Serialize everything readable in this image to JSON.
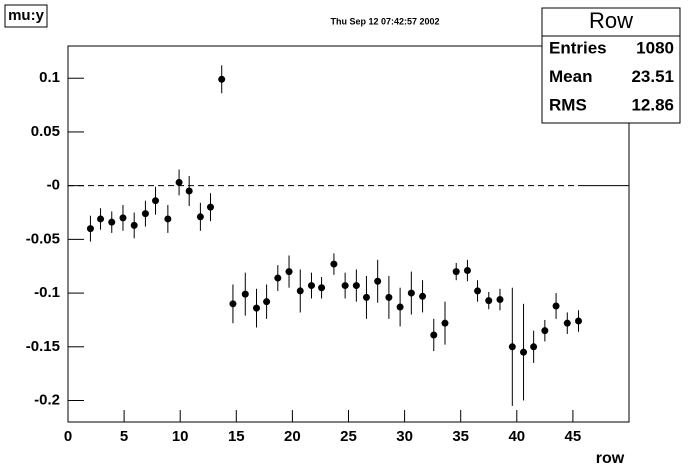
{
  "chart_data": {
    "type": "scatter",
    "title": "mu:y",
    "subtitle": "Thu Sep 12 07:42:57 2002",
    "xlabel": "row",
    "stats": {
      "title": "Row",
      "rows": [
        {
          "label": "Entries",
          "value": 1080
        },
        {
          "label": "Mean",
          "value": 23.51
        },
        {
          "label": "RMS",
          "value": 12.86
        }
      ]
    },
    "x": [
      2.0,
      2.9,
      3.9,
      4.9,
      5.9,
      6.9,
      7.8,
      8.9,
      9.9,
      10.8,
      11.8,
      12.7,
      13.7,
      14.7,
      15.8,
      16.8,
      17.7,
      18.7,
      19.7,
      20.7,
      21.7,
      22.6,
      23.7,
      24.7,
      25.7,
      26.6,
      27.6,
      28.6,
      29.6,
      30.6,
      31.6,
      32.6,
      33.6,
      34.6,
      35.6,
      36.5,
      37.5,
      38.5,
      39.6,
      40.6,
      41.5,
      42.5,
      43.5,
      44.5,
      45.5
    ],
    "series": [
      {
        "color": "#000000",
        "values": [
          -0.04,
          -0.031,
          -0.034,
          -0.03,
          -0.037,
          -0.026,
          -0.014,
          -0.031,
          0.003,
          -0.005,
          -0.029,
          -0.02,
          0.099,
          -0.11,
          -0.101,
          -0.114,
          -0.108,
          -0.086,
          -0.08,
          -0.098,
          -0.093,
          -0.095,
          -0.073,
          -0.093,
          -0.093,
          -0.104,
          -0.089,
          -0.104,
          -0.113,
          -0.1,
          -0.103,
          -0.139,
          -0.128,
          -0.08,
          -0.079,
          -0.098,
          -0.107,
          -0.106,
          -0.15,
          -0.155,
          -0.15,
          -0.135,
          -0.112,
          -0.128,
          -0.126
        ],
        "errors": [
          0.012,
          0.01,
          0.01,
          0.012,
          0.012,
          0.012,
          0.013,
          0.013,
          0.012,
          0.014,
          0.013,
          0.013,
          0.013,
          0.018,
          0.02,
          0.018,
          0.016,
          0.012,
          0.015,
          0.02,
          0.012,
          0.01,
          0.01,
          0.012,
          0.015,
          0.02,
          0.02,
          0.02,
          0.018,
          0.02,
          0.015,
          0.015,
          0.02,
          0.008,
          0.01,
          0.01,
          0.008,
          0.01,
          0.055,
          0.045,
          0.015,
          0.01,
          0.012,
          0.01,
          0.01
        ]
      }
    ],
    "xlim": [
      0,
      50
    ],
    "xticks": [
      0,
      5,
      10,
      15,
      20,
      25,
      30,
      35,
      40,
      45
    ],
    "ylim": [
      -0.22,
      0.13
    ],
    "yticks": [
      0.1,
      0.05,
      {
        "value": 0,
        "label": "-0"
      },
      -0.05,
      -0.1,
      -0.15,
      -0.2
    ]
  }
}
